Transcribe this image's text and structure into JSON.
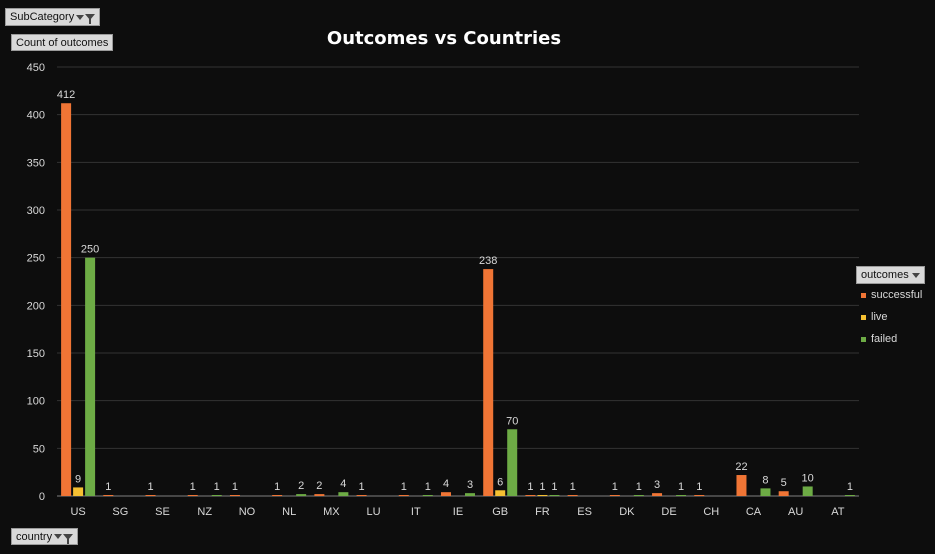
{
  "filters": {
    "subcategory_label": "SubCategory",
    "value_field_label": "Count of outcomes",
    "axis_field_label": "country",
    "legend_field_label": "outcomes"
  },
  "colors": {
    "successful": "#f07535",
    "live": "#f5c032",
    "failed": "#6dab45",
    "gridline": "#333333",
    "axis_text": "#d9d9d9"
  },
  "chart_data": {
    "type": "bar",
    "title": "Outcomes  vs Countries",
    "xlabel": "",
    "ylabel": "",
    "ylim": [
      0,
      450
    ],
    "yticks": [
      0,
      50,
      100,
      150,
      200,
      250,
      300,
      350,
      400,
      450
    ],
    "grid": true,
    "legend_position": "right",
    "categories": [
      "US",
      "SG",
      "SE",
      "NZ",
      "NO",
      "NL",
      "MX",
      "LU",
      "IT",
      "IE",
      "GB",
      "FR",
      "ES",
      "DK",
      "DE",
      "CH",
      "CA",
      "AU",
      "AT"
    ],
    "series": [
      {
        "name": "successful",
        "values": [
          412,
          1,
          1,
          1,
          1,
          1,
          2,
          1,
          1,
          4,
          238,
          1,
          1,
          1,
          3,
          1,
          22,
          5,
          null
        ]
      },
      {
        "name": "live",
        "values": [
          9,
          null,
          null,
          null,
          null,
          null,
          null,
          null,
          null,
          null,
          6,
          1,
          null,
          null,
          null,
          null,
          null,
          null,
          null
        ]
      },
      {
        "name": "failed",
        "values": [
          250,
          null,
          null,
          1,
          null,
          2,
          4,
          null,
          1,
          3,
          70,
          1,
          null,
          1,
          1,
          null,
          8,
          10,
          1
        ]
      }
    ]
  }
}
